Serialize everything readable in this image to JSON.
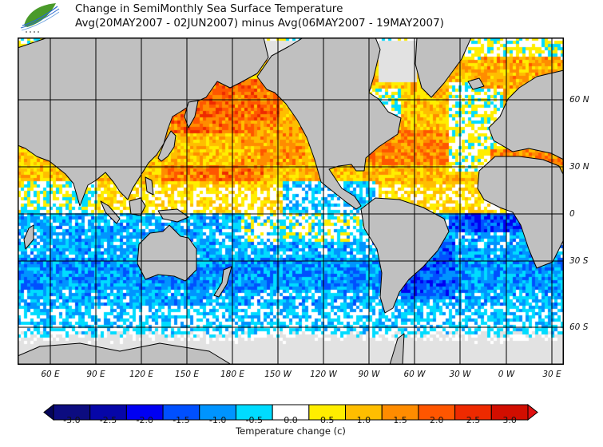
{
  "header": {
    "title_line1": "Change in SemiMonthly Sea Surface Temperature",
    "title_line2": "Avg(20MAY2007 - 02JUN2007) minus Avg(06MAY2007 - 19MAY2007)"
  },
  "map": {
    "lon_labels": [
      "60 E",
      "90 E",
      "120 E",
      "150 E",
      "180 E",
      "150 W",
      "120 W",
      "90 W",
      "60 W",
      "30 W",
      "0 W",
      "30 E"
    ],
    "lat_labels": [
      "60 N",
      "30 N",
      "0",
      "30 S",
      "60 S"
    ],
    "land_color": "#c0c0c0",
    "sea_ice_color": "#e2e2e2"
  },
  "colorbar": {
    "title": "Temperature change  (c)",
    "labels": [
      "-3.0",
      "-2.5",
      "-2.0",
      "-1.5",
      "-1.0",
      "-0.5",
      "0.0",
      "0.5",
      "1.0",
      "1.5",
      "2.0",
      "2.5",
      "3.0"
    ],
    "colors": [
      "#0c0c80",
      "#0606a8",
      "#0000f2",
      "#0050ff",
      "#0094ff",
      "#00dcff",
      "#ffffff",
      "#ffee00",
      "#ffbe00",
      "#ff8c00",
      "#ff5600",
      "#ee2a00",
      "#d20e00"
    ],
    "under_color": "#05055a",
    "over_color": "#e01010"
  }
}
